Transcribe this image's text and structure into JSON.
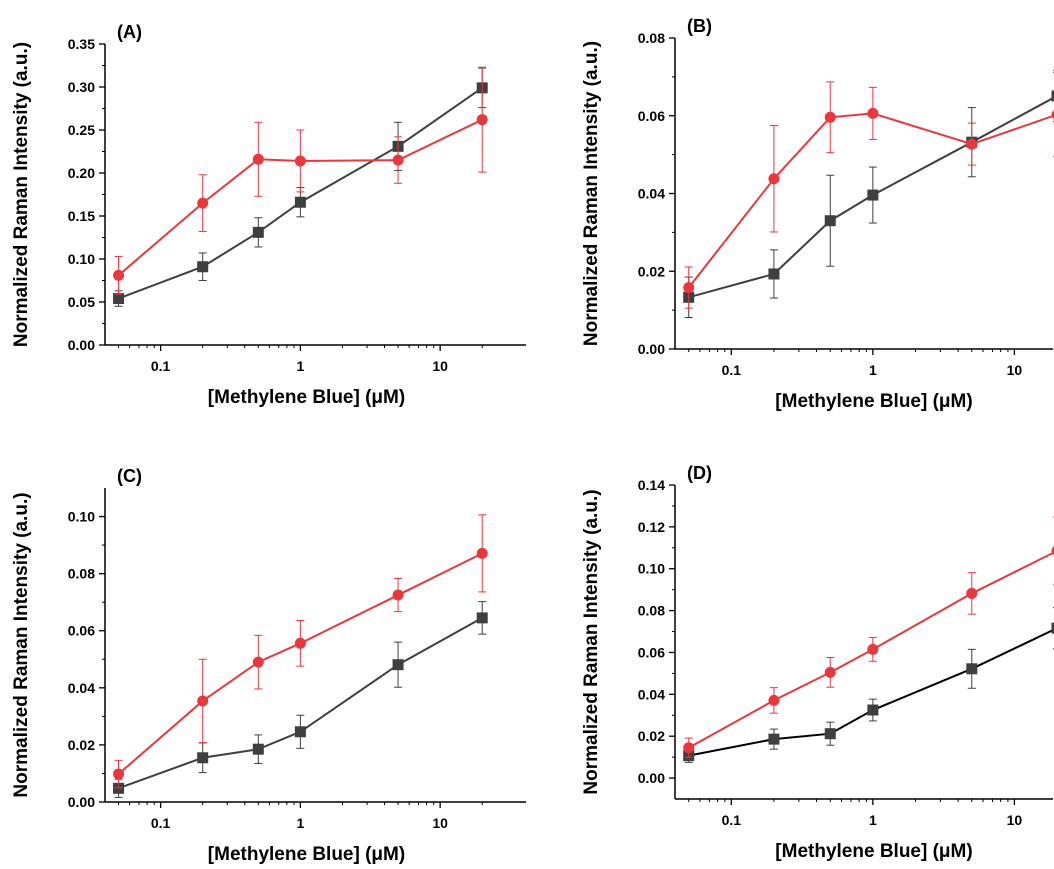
{
  "colors": {
    "red": "#e8383d",
    "gray": "#3f3f3f",
    "black": "#000000"
  },
  "chart_data": [
    {
      "panel": "(A)",
      "type": "line",
      "xlabel": "[Methylene Blue] (μM)",
      "ylabel": "Normalized Raman Intensity (a.u.)",
      "x_scale": "log",
      "xlim": [
        0.04,
        22
      ],
      "ylim": [
        0,
        0.35
      ],
      "xticks": [
        {
          "v": 0.1,
          "label": "0.1"
        },
        {
          "v": 1,
          "label": "1"
        },
        {
          "v": 10,
          "label": "10"
        }
      ],
      "yticks": [
        {
          "v": 0,
          "label": "0.00"
        },
        {
          "v": 0.05,
          "label": "0.05"
        },
        {
          "v": 0.1,
          "label": "0.10"
        },
        {
          "v": 0.15,
          "label": "0.15"
        },
        {
          "v": 0.2,
          "label": "0.20"
        },
        {
          "v": 0.25,
          "label": "0.25"
        },
        {
          "v": 0.3,
          "label": "0.30"
        },
        {
          "v": 0.35,
          "label": "0.35"
        }
      ],
      "x": [
        0.05,
        0.2,
        0.5,
        1,
        5,
        20
      ],
      "series": [
        {
          "marker": "square",
          "color": "#3f3f3f",
          "line_color": "#3f3f3f",
          "values": [
            0.054,
            0.091,
            0.131,
            0.166,
            0.231,
            0.299
          ],
          "errors": [
            0.009,
            0.016,
            0.017,
            0.017,
            0.028,
            0.023
          ]
        },
        {
          "marker": "circle",
          "color": "#e8383d",
          "line_color": "#e8383d",
          "values": [
            0.081,
            0.165,
            0.216,
            0.214,
            0.215,
            0.262
          ],
          "errors": [
            0.022,
            0.033,
            0.043,
            0.036,
            0.027,
            0.061
          ]
        }
      ]
    },
    {
      "panel": "(B)",
      "type": "line",
      "xlabel": "[Methylene Blue] (μM)",
      "ylabel": "Normalized Raman Intensity (a.u.)",
      "x_scale": "log",
      "xlim": [
        0.04,
        20
      ],
      "ylim": [
        0,
        0.08
      ],
      "xticks": [
        {
          "v": 0.1,
          "label": "0.1"
        },
        {
          "v": 1,
          "label": "1"
        },
        {
          "v": 10,
          "label": "10"
        }
      ],
      "yticks": [
        {
          "v": 0,
          "label": "0.00"
        },
        {
          "v": 0.02,
          "label": "0.02"
        },
        {
          "v": 0.04,
          "label": "0.04"
        },
        {
          "v": 0.06,
          "label": "0.06"
        },
        {
          "v": 0.08,
          "label": "0.08"
        }
      ],
      "x": [
        0.05,
        0.2,
        0.5,
        1,
        5,
        20
      ],
      "series": [
        {
          "marker": "square",
          "color": "#3f3f3f",
          "line_color": "#3f3f3f",
          "values": [
            0.0133,
            0.0193,
            0.033,
            0.0396,
            0.0532,
            0.0651
          ],
          "errors": [
            0.0052,
            0.0062,
            0.0117,
            0.0072,
            0.0089,
            0.0066
          ]
        },
        {
          "marker": "circle",
          "color": "#e8383d",
          "line_color": "#e8383d",
          "values": [
            0.0158,
            0.0438,
            0.0596,
            0.0606,
            0.0527,
            0.0603
          ],
          "errors": [
            0.0053,
            0.0137,
            0.0091,
            0.0067,
            0.0054,
            0.0108
          ]
        }
      ]
    },
    {
      "panel": "(C)",
      "type": "line",
      "xlabel": "[Methylene Blue] (μM)",
      "ylabel": "Normalized Raman Intensity (a.u.)",
      "x_scale": "log",
      "xlim": [
        0.04,
        22
      ],
      "ylim": [
        0,
        0.11
      ],
      "xticks": [
        {
          "v": 0.1,
          "label": "0.1"
        },
        {
          "v": 1,
          "label": "1"
        },
        {
          "v": 10,
          "label": "10"
        }
      ],
      "yticks": [
        {
          "v": 0,
          "label": "0.00"
        },
        {
          "v": 0.02,
          "label": "0.02"
        },
        {
          "v": 0.04,
          "label": "0.04"
        },
        {
          "v": 0.06,
          "label": "0.06"
        },
        {
          "v": 0.08,
          "label": "0.08"
        },
        {
          "v": 0.1,
          "label": "0.10"
        }
      ],
      "x": [
        0.05,
        0.2,
        0.5,
        1,
        5,
        20
      ],
      "series": [
        {
          "marker": "square",
          "color": "#3f3f3f",
          "line_color": "#3f3f3f",
          "values": [
            0.0048,
            0.0155,
            0.0185,
            0.0246,
            0.0481,
            0.0645
          ],
          "errors": [
            0.0032,
            0.0052,
            0.005,
            0.0058,
            0.0079,
            0.0057
          ]
        },
        {
          "marker": "circle",
          "color": "#e8383d",
          "line_color": "#e8383d",
          "values": [
            0.0098,
            0.0354,
            0.049,
            0.0556,
            0.0725,
            0.0871
          ],
          "errors": [
            0.0048,
            0.0146,
            0.0094,
            0.008,
            0.0058,
            0.0135
          ]
        }
      ]
    },
    {
      "panel": "(D)",
      "type": "line",
      "xlabel": "[Methylene Blue] (μM)",
      "ylabel": "Normalized Raman Intensity (a.u.)",
      "x_scale": "log",
      "xlim": [
        0.04,
        20
      ],
      "ylim": [
        -0.01,
        0.14
      ],
      "xticks": [
        {
          "v": 0.1,
          "label": "0.1"
        },
        {
          "v": 1,
          "label": "1"
        },
        {
          "v": 10,
          "label": "10"
        }
      ],
      "yticks": [
        {
          "v": 0,
          "label": "0.00"
        },
        {
          "v": 0.02,
          "label": "0.02"
        },
        {
          "v": 0.04,
          "label": "0.04"
        },
        {
          "v": 0.06,
          "label": "0.06"
        },
        {
          "v": 0.08,
          "label": "0.08"
        },
        {
          "v": 0.1,
          "label": "0.10"
        },
        {
          "v": 0.12,
          "label": "0.12"
        },
        {
          "v": 0.14,
          "label": "0.14"
        }
      ],
      "x": [
        0.05,
        0.2,
        0.5,
        1,
        5,
        20
      ],
      "series": [
        {
          "marker": "square",
          "color": "#3f3f3f",
          "line_color": "#000000",
          "values": [
            0.0107,
            0.0186,
            0.0212,
            0.0325,
            0.0522,
            0.0716
          ],
          "errors": [
            0.0032,
            0.0048,
            0.0055,
            0.0052,
            0.0093,
            0.0098
          ]
        },
        {
          "marker": "circle",
          "color": "#e8383d",
          "line_color": "#e8383d",
          "values": [
            0.0145,
            0.0371,
            0.0505,
            0.0615,
            0.0882,
            0.1085
          ],
          "errors": [
            0.0046,
            0.0061,
            0.0071,
            0.0057,
            0.0099,
            0.0162
          ]
        }
      ]
    }
  ]
}
